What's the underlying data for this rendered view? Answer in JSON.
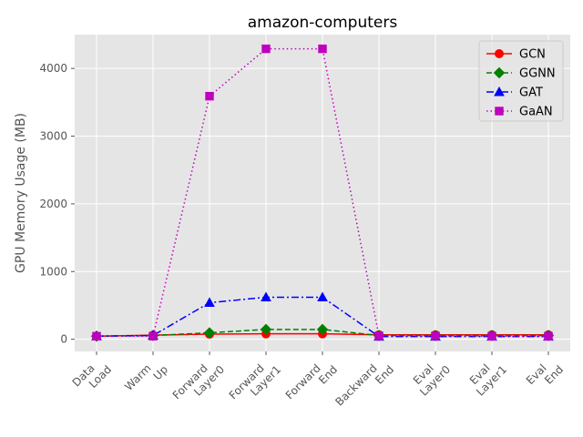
{
  "chart_data": {
    "type": "line",
    "title": "amazon-computers",
    "xlabel": "",
    "ylabel": "GPU Memory Usage (MB)",
    "categories": [
      [
        "Data",
        "Load"
      ],
      [
        "Warm",
        "Up"
      ],
      [
        "Forward",
        "Layer0"
      ],
      [
        "Forward",
        "Layer1"
      ],
      [
        "Forward",
        "End"
      ],
      [
        "Backward",
        "End"
      ],
      [
        "Eval",
        "Layer0"
      ],
      [
        "Eval",
        "Layer1"
      ],
      [
        "Eval",
        "End"
      ]
    ],
    "ylim": [
      -180,
      4500
    ],
    "yticks": [
      0,
      1000,
      2000,
      3000,
      4000
    ],
    "grid": true,
    "legend_position": "top-right",
    "series": [
      {
        "name": "GCN",
        "color": "#ff0000",
        "dash": "solid",
        "marker": "circle",
        "values": [
          45,
          60,
          75,
          80,
          80,
          65,
          65,
          65,
          65
        ]
      },
      {
        "name": "GGNN",
        "color": "#007f00",
        "dash": "dashed",
        "marker": "diamond",
        "values": [
          45,
          55,
          95,
          145,
          145,
          55,
          55,
          55,
          55
        ]
      },
      {
        "name": "GAT",
        "color": "#0000ff",
        "dash": "dashdot",
        "marker": "triangle",
        "values": [
          45,
          55,
          540,
          620,
          620,
          40,
          40,
          40,
          40
        ]
      },
      {
        "name": "GaAN",
        "color": "#bf00bf",
        "dash": "dotted",
        "marker": "square",
        "values": [
          45,
          45,
          3590,
          4290,
          4290,
          50,
          50,
          45,
          45
        ]
      }
    ]
  }
}
